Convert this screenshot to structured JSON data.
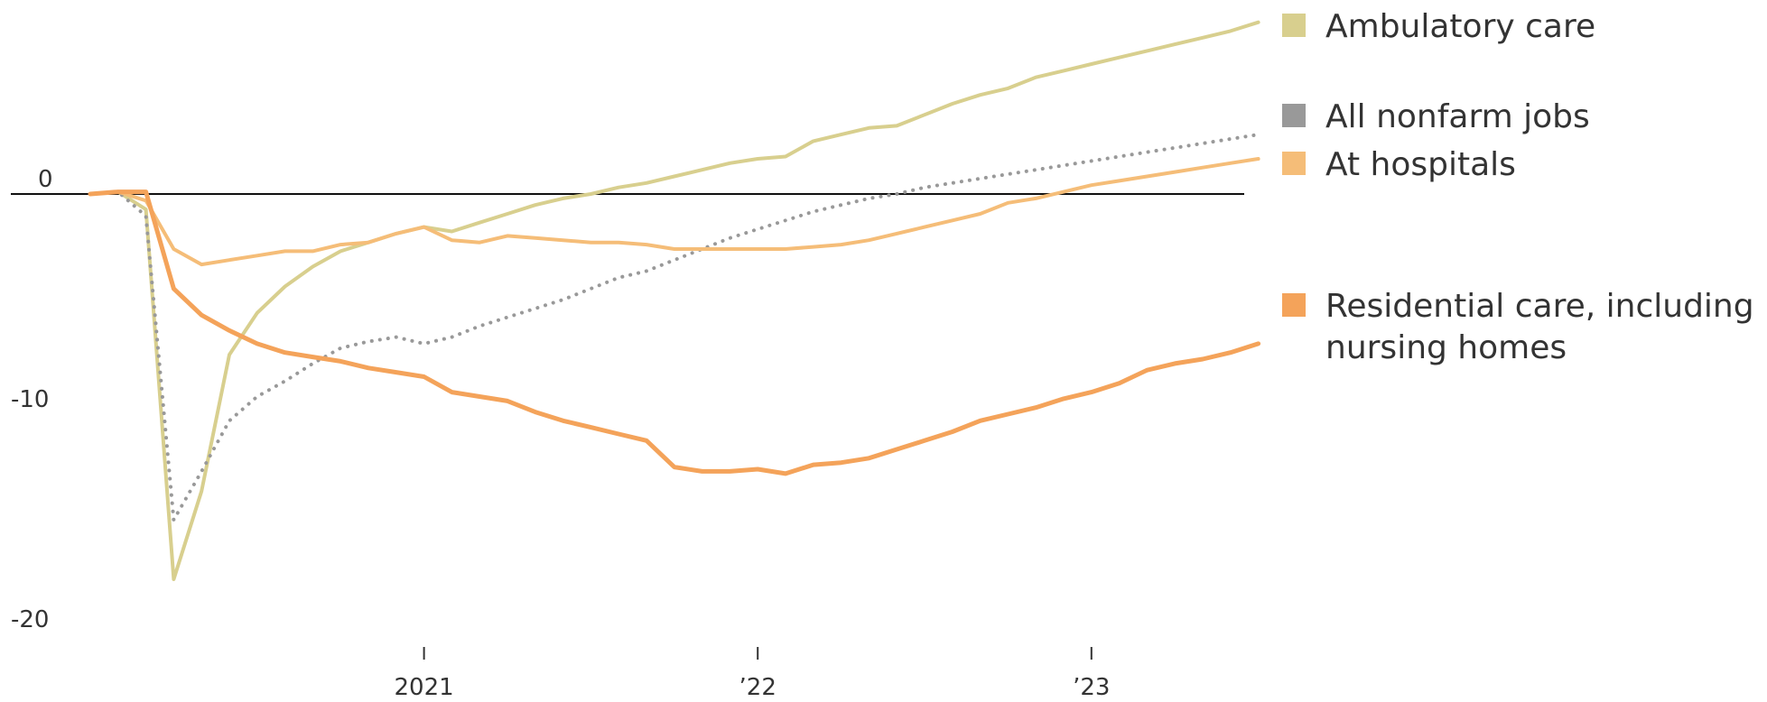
{
  "chart_data": {
    "type": "line",
    "title": "",
    "xlabel": "",
    "ylabel": "",
    "x_range": [
      "2020-01",
      "2023-07"
    ],
    "ylim": [
      -20,
      8
    ],
    "y_ticks": [
      {
        "value": 0,
        "label": "0"
      },
      {
        "value": -10,
        "label": "-10"
      },
      {
        "value": -20,
        "label": "-20"
      }
    ],
    "x_ticks": [
      {
        "date": "2021-01",
        "label": "2021"
      },
      {
        "date": "2022-01",
        "label": "’22"
      },
      {
        "date": "2023-01",
        "label": "’23"
      }
    ],
    "zero_line": true,
    "grid": false,
    "legend_position": "right",
    "series": [
      {
        "name": "Ambulatory care",
        "color": "#d8cf8e",
        "style": "solid",
        "points": [
          [
            "2020-01",
            0
          ],
          [
            "2020-02",
            0.1
          ],
          [
            "2020-03",
            -0.7
          ],
          [
            "2020-04",
            -17.5
          ],
          [
            "2020-05",
            -13.5
          ],
          [
            "2020-06",
            -7.3
          ],
          [
            "2020-07",
            -5.4
          ],
          [
            "2020-08",
            -4.2
          ],
          [
            "2020-09",
            -3.3
          ],
          [
            "2020-10",
            -2.6
          ],
          [
            "2020-11",
            -2.2
          ],
          [
            "2020-12",
            -1.8
          ],
          [
            "2021-01",
            -1.5
          ],
          [
            "2021-02",
            -1.7
          ],
          [
            "2021-03",
            -1.3
          ],
          [
            "2021-04",
            -0.9
          ],
          [
            "2021-05",
            -0.5
          ],
          [
            "2021-06",
            -0.2
          ],
          [
            "2021-07",
            0
          ],
          [
            "2021-08",
            0.3
          ],
          [
            "2021-09",
            0.5
          ],
          [
            "2021-10",
            0.8
          ],
          [
            "2021-11",
            1.1
          ],
          [
            "2021-12",
            1.4
          ],
          [
            "2022-01",
            1.6
          ],
          [
            "2022-02",
            1.7
          ],
          [
            "2022-03",
            2.4
          ],
          [
            "2022-04",
            2.7
          ],
          [
            "2022-05",
            3.0
          ],
          [
            "2022-06",
            3.1
          ],
          [
            "2022-07",
            3.6
          ],
          [
            "2022-08",
            4.1
          ],
          [
            "2022-09",
            4.5
          ],
          [
            "2022-10",
            4.8
          ],
          [
            "2022-11",
            5.3
          ],
          [
            "2022-12",
            5.6
          ],
          [
            "2023-01",
            5.9
          ],
          [
            "2023-02",
            6.2
          ],
          [
            "2023-03",
            6.5
          ],
          [
            "2023-04",
            6.8
          ],
          [
            "2023-05",
            7.1
          ],
          [
            "2023-06",
            7.4
          ],
          [
            "2023-07",
            7.8
          ]
        ]
      },
      {
        "name": "All nonfarm jobs",
        "color": "#999999",
        "style": "dotted",
        "points": [
          [
            "2020-01",
            0
          ],
          [
            "2020-02",
            0.1
          ],
          [
            "2020-03",
            -1.0
          ],
          [
            "2020-04",
            -14.8
          ],
          [
            "2020-05",
            -12.6
          ],
          [
            "2020-06",
            -10.3
          ],
          [
            "2020-07",
            -9.2
          ],
          [
            "2020-08",
            -8.5
          ],
          [
            "2020-09",
            -7.7
          ],
          [
            "2020-10",
            -7.0
          ],
          [
            "2020-11",
            -6.7
          ],
          [
            "2020-12",
            -6.5
          ],
          [
            "2021-01",
            -6.8
          ],
          [
            "2021-02",
            -6.5
          ],
          [
            "2021-03",
            -6.0
          ],
          [
            "2021-04",
            -5.6
          ],
          [
            "2021-05",
            -5.2
          ],
          [
            "2021-06",
            -4.8
          ],
          [
            "2021-07",
            -4.3
          ],
          [
            "2021-08",
            -3.8
          ],
          [
            "2021-09",
            -3.5
          ],
          [
            "2021-10",
            -3.0
          ],
          [
            "2021-11",
            -2.5
          ],
          [
            "2021-12",
            -2.0
          ],
          [
            "2022-01",
            -1.6
          ],
          [
            "2022-02",
            -1.2
          ],
          [
            "2022-03",
            -0.8
          ],
          [
            "2022-04",
            -0.5
          ],
          [
            "2022-05",
            -0.2
          ],
          [
            "2022-06",
            0
          ],
          [
            "2022-07",
            0.3
          ],
          [
            "2022-08",
            0.5
          ],
          [
            "2022-09",
            0.7
          ],
          [
            "2022-10",
            0.9
          ],
          [
            "2022-11",
            1.1
          ],
          [
            "2022-12",
            1.3
          ],
          [
            "2023-01",
            1.5
          ],
          [
            "2023-02",
            1.7
          ],
          [
            "2023-03",
            1.9
          ],
          [
            "2023-04",
            2.1
          ],
          [
            "2023-05",
            2.3
          ],
          [
            "2023-06",
            2.5
          ],
          [
            "2023-07",
            2.7
          ]
        ]
      },
      {
        "name": "At hospitals",
        "color": "#f5bd78",
        "style": "solid",
        "points": [
          [
            "2020-01",
            0
          ],
          [
            "2020-02",
            0.1
          ],
          [
            "2020-03",
            -0.3
          ],
          [
            "2020-04",
            -2.5
          ],
          [
            "2020-05",
            -3.2
          ],
          [
            "2020-06",
            -3.0
          ],
          [
            "2020-07",
            -2.8
          ],
          [
            "2020-08",
            -2.6
          ],
          [
            "2020-09",
            -2.6
          ],
          [
            "2020-10",
            -2.3
          ],
          [
            "2020-11",
            -2.2
          ],
          [
            "2020-12",
            -1.8
          ],
          [
            "2021-01",
            -1.5
          ],
          [
            "2021-02",
            -2.1
          ],
          [
            "2021-03",
            -2.2
          ],
          [
            "2021-04",
            -1.9
          ],
          [
            "2021-05",
            -2.0
          ],
          [
            "2021-06",
            -2.1
          ],
          [
            "2021-07",
            -2.2
          ],
          [
            "2021-08",
            -2.2
          ],
          [
            "2021-09",
            -2.3
          ],
          [
            "2021-10",
            -2.5
          ],
          [
            "2021-11",
            -2.5
          ],
          [
            "2021-12",
            -2.5
          ],
          [
            "2022-01",
            -2.5
          ],
          [
            "2022-02",
            -2.5
          ],
          [
            "2022-03",
            -2.4
          ],
          [
            "2022-04",
            -2.3
          ],
          [
            "2022-05",
            -2.1
          ],
          [
            "2022-06",
            -1.8
          ],
          [
            "2022-07",
            -1.5
          ],
          [
            "2022-08",
            -1.2
          ],
          [
            "2022-09",
            -0.9
          ],
          [
            "2022-10",
            -0.4
          ],
          [
            "2022-11",
            -0.2
          ],
          [
            "2022-12",
            0.1
          ],
          [
            "2023-01",
            0.4
          ],
          [
            "2023-02",
            0.6
          ],
          [
            "2023-03",
            0.8
          ],
          [
            "2023-04",
            1.0
          ],
          [
            "2023-05",
            1.2
          ],
          [
            "2023-06",
            1.4
          ],
          [
            "2023-07",
            1.6
          ]
        ]
      },
      {
        "name": "Residential care, including nursing homes",
        "name_lines": [
          "Residential care, including",
          "nursing homes"
        ],
        "color": "#f4a35a",
        "style": "solid",
        "points": [
          [
            "2020-01",
            0
          ],
          [
            "2020-02",
            0.1
          ],
          [
            "2020-03",
            0.1
          ],
          [
            "2020-04",
            -4.3
          ],
          [
            "2020-05",
            -5.5
          ],
          [
            "2020-06",
            -6.2
          ],
          [
            "2020-07",
            -6.8
          ],
          [
            "2020-08",
            -7.2
          ],
          [
            "2020-09",
            -7.4
          ],
          [
            "2020-10",
            -7.6
          ],
          [
            "2020-11",
            -7.9
          ],
          [
            "2020-12",
            -8.1
          ],
          [
            "2021-01",
            -8.3
          ],
          [
            "2021-02",
            -9.0
          ],
          [
            "2021-03",
            -9.2
          ],
          [
            "2021-04",
            -9.4
          ],
          [
            "2021-05",
            -9.9
          ],
          [
            "2021-06",
            -10.3
          ],
          [
            "2021-07",
            -10.6
          ],
          [
            "2021-08",
            -10.9
          ],
          [
            "2021-09",
            -11.2
          ],
          [
            "2021-10",
            -12.4
          ],
          [
            "2021-11",
            -12.6
          ],
          [
            "2021-12",
            -12.6
          ],
          [
            "2022-01",
            -12.5
          ],
          [
            "2022-02",
            -12.7
          ],
          [
            "2022-03",
            -12.3
          ],
          [
            "2022-04",
            -12.2
          ],
          [
            "2022-05",
            -12.0
          ],
          [
            "2022-06",
            -11.6
          ],
          [
            "2022-07",
            -11.2
          ],
          [
            "2022-08",
            -10.8
          ],
          [
            "2022-09",
            -10.3
          ],
          [
            "2022-10",
            -10.0
          ],
          [
            "2022-11",
            -9.7
          ],
          [
            "2022-12",
            -9.3
          ],
          [
            "2023-01",
            -9.0
          ],
          [
            "2023-02",
            -8.6
          ],
          [
            "2023-03",
            -8.0
          ],
          [
            "2023-04",
            -7.7
          ],
          [
            "2023-05",
            -7.5
          ],
          [
            "2023-06",
            -7.2
          ],
          [
            "2023-07",
            -6.8
          ]
        ]
      }
    ]
  }
}
